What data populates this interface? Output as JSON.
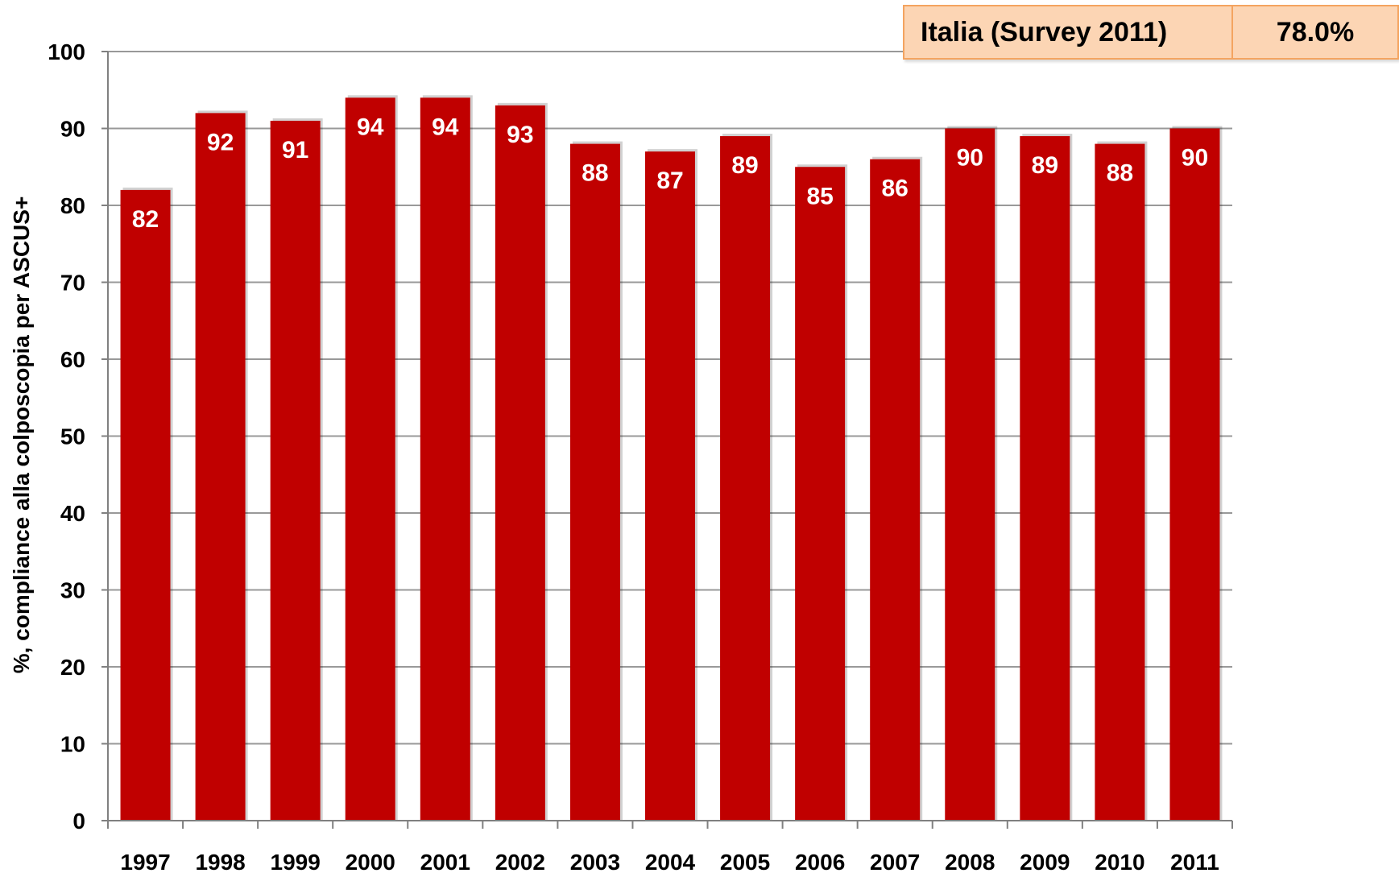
{
  "chart_data": {
    "type": "bar",
    "title": "",
    "xlabel": "",
    "ylabel": "%, compliance alla colposcopia per ASCUS+",
    "ylim": [
      0,
      100
    ],
    "yticks": [
      0,
      10,
      20,
      30,
      40,
      50,
      60,
      70,
      80,
      90,
      100
    ],
    "grid": true,
    "categories": [
      "1997",
      "1998",
      "1999",
      "2000",
      "2001",
      "2002",
      "2003",
      "2004",
      "2005",
      "2006",
      "2007",
      "2008",
      "2009",
      "2010",
      "2011"
    ],
    "values": [
      82,
      92,
      91,
      94,
      94,
      93,
      88,
      87,
      89,
      85,
      86,
      90,
      89,
      88,
      90
    ],
    "bar_labels": [
      "82",
      "92",
      "91",
      "94",
      "94",
      "93",
      "88",
      "87",
      "89",
      "85",
      "86",
      "90",
      "89",
      "88",
      "90"
    ]
  },
  "legend_box": {
    "label": "Italia (Survey 2011)",
    "value": "78.0%"
  },
  "colors": {
    "bar": "#c00000",
    "grid": "#999999",
    "box_fill": "#fcd5b4",
    "box_border": "#f4a460"
  }
}
